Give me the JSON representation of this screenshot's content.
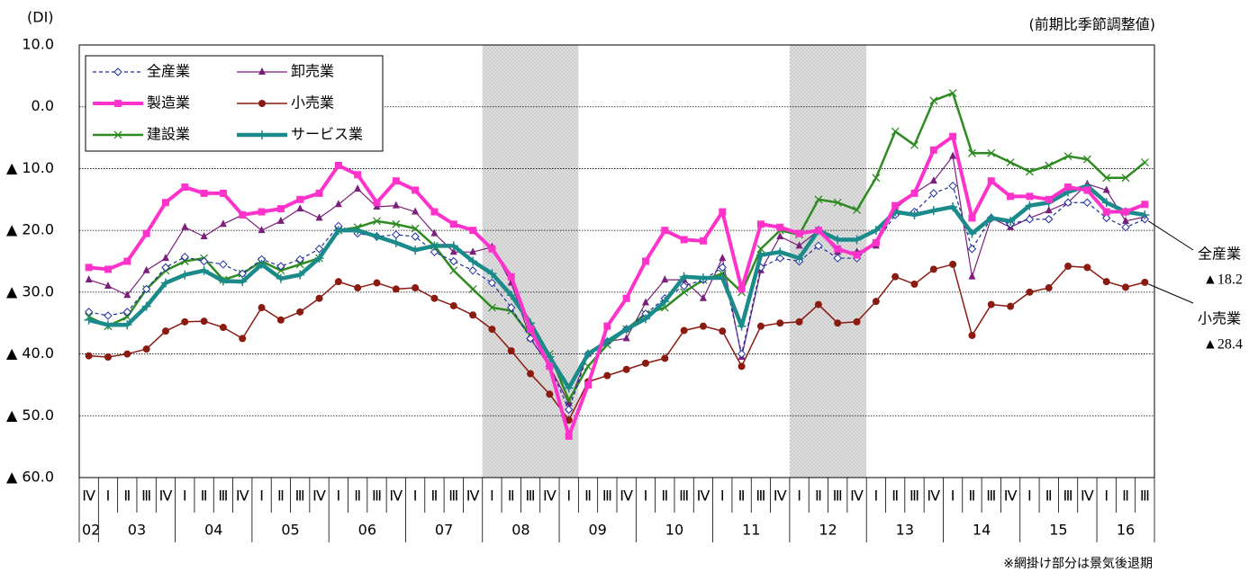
{
  "chart_data": {
    "type": "line",
    "y_unit": "(DI)",
    "subtitle": "(前期比季節調整値)",
    "note": "※網掛け部分は景気後退期",
    "categories": [
      "Ⅳ",
      "Ⅰ",
      "Ⅱ",
      "Ⅲ",
      "Ⅳ",
      "Ⅰ",
      "Ⅱ",
      "Ⅲ",
      "Ⅳ",
      "Ⅰ",
      "Ⅱ",
      "Ⅲ",
      "Ⅳ",
      "Ⅰ",
      "Ⅱ",
      "Ⅲ",
      "Ⅳ",
      "Ⅰ",
      "Ⅱ",
      "Ⅲ",
      "Ⅳ",
      "Ⅰ",
      "Ⅱ",
      "Ⅲ",
      "Ⅳ",
      "Ⅰ",
      "Ⅱ",
      "Ⅲ",
      "Ⅳ",
      "Ⅰ",
      "Ⅱ",
      "Ⅲ",
      "Ⅳ",
      "Ⅰ",
      "Ⅱ",
      "Ⅲ",
      "Ⅳ",
      "Ⅰ",
      "Ⅱ",
      "Ⅲ",
      "Ⅳ",
      "Ⅰ",
      "Ⅱ",
      "Ⅲ",
      "Ⅳ",
      "Ⅰ",
      "Ⅱ",
      "Ⅲ",
      "Ⅳ",
      "Ⅰ",
      "Ⅱ",
      "Ⅲ",
      "Ⅳ",
      "Ⅰ",
      "Ⅱ",
      "Ⅲ"
    ],
    "years": [
      "02",
      "03",
      "04",
      "05",
      "06",
      "07",
      "08",
      "09",
      "10",
      "11",
      "12",
      "13",
      "14",
      "15",
      "16"
    ],
    "shaded": [
      [
        21,
        25
      ],
      [
        37,
        40
      ]
    ],
    "ylim": [
      -60,
      10
    ],
    "yticks": [
      {
        "value": 10,
        "label": "10.0"
      },
      {
        "value": 0,
        "label": "0.0"
      },
      {
        "value": -10,
        "label": "▲ 10.0"
      },
      {
        "value": -20,
        "label": "▲ 20.0"
      },
      {
        "value": -30,
        "label": "▲ 30.0"
      },
      {
        "value": -40,
        "label": "▲ 40.0"
      },
      {
        "value": -50,
        "label": "▲ 50.0"
      },
      {
        "value": -60,
        "label": "▲ 60.0"
      }
    ],
    "grid": true,
    "legend": "top-left",
    "series": [
      {
        "name": "全産業",
        "color": "#1f2f9f",
        "marker": "diamond",
        "line_width": 1.2,
        "dash": true,
        "end_label": "▲18.2",
        "values": [
          -33.2,
          -33.8,
          -33.2,
          -29.5,
          -26,
          -24.3,
          -25,
          -25.5,
          -27,
          -24.7,
          -25.8,
          -24.7,
          -23,
          -19.3,
          -20.5,
          -21,
          -20.7,
          -21,
          -23.5,
          -25,
          -26.5,
          -28.5,
          -32.5,
          -37.5,
          -42,
          -49,
          -40,
          -38,
          -36,
          -33.5,
          -31,
          -29,
          -28,
          -26,
          -40,
          -26,
          -24.5,
          -25,
          -22.5,
          -24.5,
          -24.5,
          -22,
          -17.5,
          -17,
          -14,
          -12.8,
          -23,
          -18,
          -19,
          -18.2,
          -18.2,
          -15.5,
          -15.5,
          -18,
          -19.5,
          -18.2
        ]
      },
      {
        "name": "製造業",
        "color": "#ff33cc",
        "marker": "square",
        "line_width": 4,
        "values": [
          -26,
          -26.3,
          -25,
          -20.5,
          -15.5,
          -13,
          -14,
          -14,
          -17.5,
          -17,
          -16.5,
          -15,
          -14,
          -9.5,
          -11,
          -15.5,
          -12,
          -13.5,
          -17,
          -19,
          -20,
          -23,
          -27.5,
          -36,
          -42,
          -53.3,
          -45,
          -35.5,
          -31,
          -25,
          -20,
          -21.5,
          -21.7,
          -17,
          -29.5,
          -19,
          -19.5,
          -20.5,
          -20,
          -23,
          -24,
          -22,
          -16,
          -14,
          -7,
          -4.8,
          -18,
          -12,
          -14.5,
          -14.5,
          -15,
          -13,
          -13.5,
          -17,
          -17,
          -15.8
        ]
      },
      {
        "name": "建設業",
        "color": "#2e8b22",
        "marker": "x",
        "line_width": 2.5,
        "values": [
          -34,
          -35.5,
          -34,
          -29.5,
          -26.5,
          -25,
          -24.5,
          -28,
          -27,
          -25,
          -26.5,
          -25.5,
          -24.5,
          -20,
          -19.5,
          -18.5,
          -19,
          -19.7,
          -22.5,
          -26.5,
          -29.5,
          -32.5,
          -33,
          -37,
          -40,
          -47.5,
          -42,
          -38.5,
          -36,
          -33.5,
          -32.5,
          -30,
          -28,
          -27,
          -30,
          -23,
          -20,
          -20.7,
          -15,
          -15.5,
          -16.7,
          -11.5,
          -4,
          -6.2,
          1,
          2.2,
          -7.5,
          -7.5,
          -9,
          -10.5,
          -9.5,
          -8,
          -8.5,
          -11.5,
          -11.5,
          -9
        ]
      },
      {
        "name": "卸売業",
        "color": "#7a1f7a",
        "marker": "triangle",
        "line_width": 1.2,
        "values": [
          -28,
          -29,
          -30.5,
          -26.5,
          -24.5,
          -19.5,
          -21,
          -19,
          -17.5,
          -20,
          -18.5,
          -16.5,
          -18,
          -15.8,
          -13.3,
          -16.2,
          -16,
          -17,
          -20.5,
          -23.5,
          -23.5,
          -22.7,
          -28.5,
          -37.5,
          -42,
          -48,
          -40,
          -38,
          -37.5,
          -31.7,
          -28,
          -28,
          -31,
          -24.5,
          -40.5,
          -26.5,
          -21,
          -22.5,
          -20,
          -23.5,
          -23.5,
          -22.5,
          -16.5,
          -14,
          -12,
          -8,
          -27.5,
          -18,
          -19.5,
          -18,
          -16.8,
          -15.5,
          -12.5,
          -13.5,
          -18.5,
          -17.8
        ]
      },
      {
        "name": "小売業",
        "color": "#8b1a10",
        "marker": "circle",
        "line_width": 1.5,
        "end_label": "▲28.4",
        "values": [
          -40.3,
          -40.5,
          -40,
          -39.2,
          -36.3,
          -34.8,
          -34.7,
          -35.7,
          -37.5,
          -32.5,
          -34.5,
          -33.2,
          -31,
          -28.3,
          -29.3,
          -28.5,
          -29.5,
          -29.3,
          -31,
          -32.2,
          -33.7,
          -36,
          -39.5,
          -43.2,
          -46.5,
          -50.7,
          -44.5,
          -43.5,
          -42.5,
          -41.5,
          -40.7,
          -36.2,
          -35.5,
          -36.3,
          -42,
          -35.5,
          -35,
          -34.8,
          -32,
          -35,
          -34.8,
          -31.5,
          -27.5,
          -28.7,
          -26.3,
          -25.5,
          -37,
          -32,
          -32.3,
          -30,
          -29.3,
          -25.8,
          -26,
          -28.3,
          -29.2,
          -28.4
        ]
      },
      {
        "name": "サービス業",
        "color": "#1a8a8a",
        "marker": "plus",
        "line_width": 4.5,
        "values": [
          -34.5,
          -35.3,
          -35.3,
          -32.3,
          -28.5,
          -27.2,
          -26.5,
          -28.2,
          -28.3,
          -25.5,
          -27.8,
          -27.2,
          -24.5,
          -20,
          -20,
          -21,
          -22,
          -23.2,
          -22.5,
          -22.5,
          -25,
          -27,
          -30.5,
          -35,
          -40.5,
          -45.5,
          -40,
          -38,
          -36,
          -34.3,
          -31.5,
          -27.5,
          -27.7,
          -27.7,
          -35.5,
          -24,
          -23.5,
          -24.5,
          -20,
          -21.5,
          -21.5,
          -20,
          -17,
          -17.5,
          -16.8,
          -16.2,
          -20.5,
          -18,
          -18.5,
          -16,
          -15.5,
          -13.8,
          -12.8,
          -15.5,
          -17,
          -17.5
        ]
      }
    ]
  }
}
